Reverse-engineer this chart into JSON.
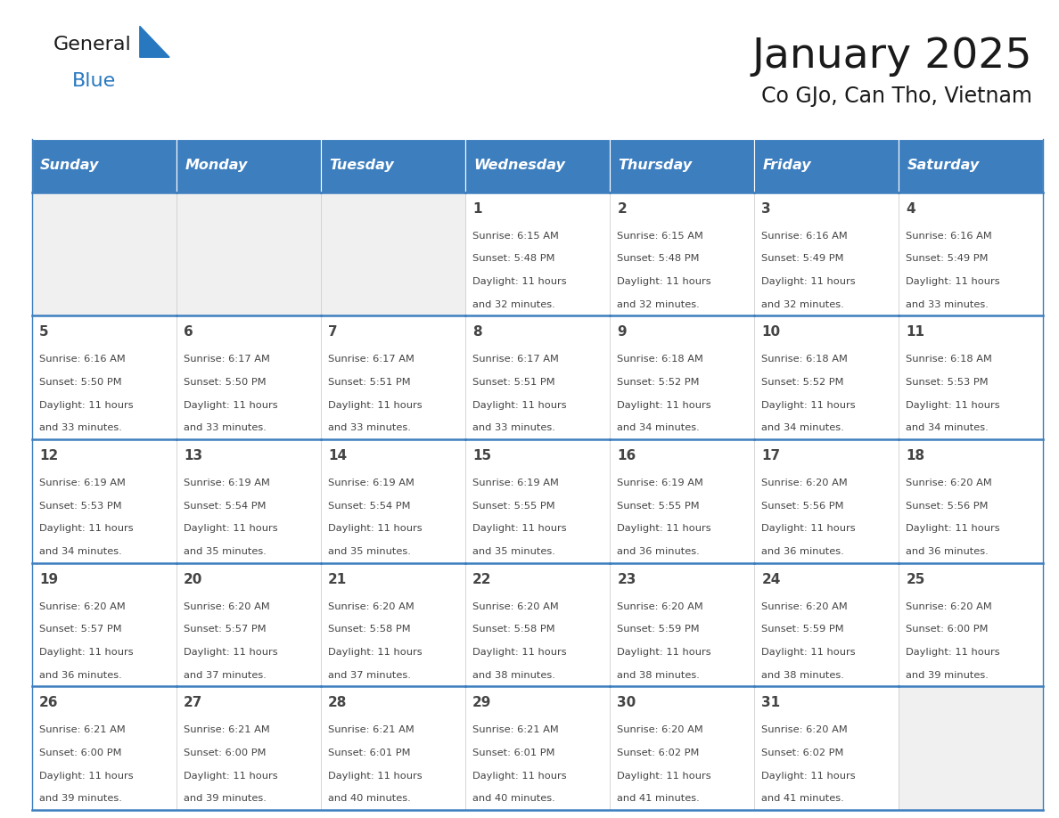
{
  "title": "January 2025",
  "subtitle": "Co GJo, Can Tho, Vietnam",
  "days_of_week": [
    "Sunday",
    "Monday",
    "Tuesday",
    "Wednesday",
    "Thursday",
    "Friday",
    "Saturday"
  ],
  "header_bg": "#3d7ebf",
  "header_text": "#ffffff",
  "cell_bg_light": "#f0f0f0",
  "cell_bg_white": "#ffffff",
  "border_color": "#3d7ebf",
  "text_color": "#444444",
  "title_color": "#1a1a1a",
  "logo_black": "#1a1a1a",
  "logo_blue": "#2878c0",
  "calendar_data": [
    [
      {
        "day": null,
        "sunrise": null,
        "sunset": null,
        "daylight": null
      },
      {
        "day": null,
        "sunrise": null,
        "sunset": null,
        "daylight": null
      },
      {
        "day": null,
        "sunrise": null,
        "sunset": null,
        "daylight": null
      },
      {
        "day": 1,
        "sunrise": "6:15 AM",
        "sunset": "5:48 PM",
        "daylight": "11 hours and 32 minutes."
      },
      {
        "day": 2,
        "sunrise": "6:15 AM",
        "sunset": "5:48 PM",
        "daylight": "11 hours and 32 minutes."
      },
      {
        "day": 3,
        "sunrise": "6:16 AM",
        "sunset": "5:49 PM",
        "daylight": "11 hours and 32 minutes."
      },
      {
        "day": 4,
        "sunrise": "6:16 AM",
        "sunset": "5:49 PM",
        "daylight": "11 hours and 33 minutes."
      }
    ],
    [
      {
        "day": 5,
        "sunrise": "6:16 AM",
        "sunset": "5:50 PM",
        "daylight": "11 hours and 33 minutes."
      },
      {
        "day": 6,
        "sunrise": "6:17 AM",
        "sunset": "5:50 PM",
        "daylight": "11 hours and 33 minutes."
      },
      {
        "day": 7,
        "sunrise": "6:17 AM",
        "sunset": "5:51 PM",
        "daylight": "11 hours and 33 minutes."
      },
      {
        "day": 8,
        "sunrise": "6:17 AM",
        "sunset": "5:51 PM",
        "daylight": "11 hours and 33 minutes."
      },
      {
        "day": 9,
        "sunrise": "6:18 AM",
        "sunset": "5:52 PM",
        "daylight": "11 hours and 34 minutes."
      },
      {
        "day": 10,
        "sunrise": "6:18 AM",
        "sunset": "5:52 PM",
        "daylight": "11 hours and 34 minutes."
      },
      {
        "day": 11,
        "sunrise": "6:18 AM",
        "sunset": "5:53 PM",
        "daylight": "11 hours and 34 minutes."
      }
    ],
    [
      {
        "day": 12,
        "sunrise": "6:19 AM",
        "sunset": "5:53 PM",
        "daylight": "11 hours and 34 minutes."
      },
      {
        "day": 13,
        "sunrise": "6:19 AM",
        "sunset": "5:54 PM",
        "daylight": "11 hours and 35 minutes."
      },
      {
        "day": 14,
        "sunrise": "6:19 AM",
        "sunset": "5:54 PM",
        "daylight": "11 hours and 35 minutes."
      },
      {
        "day": 15,
        "sunrise": "6:19 AM",
        "sunset": "5:55 PM",
        "daylight": "11 hours and 35 minutes."
      },
      {
        "day": 16,
        "sunrise": "6:19 AM",
        "sunset": "5:55 PM",
        "daylight": "11 hours and 36 minutes."
      },
      {
        "day": 17,
        "sunrise": "6:20 AM",
        "sunset": "5:56 PM",
        "daylight": "11 hours and 36 minutes."
      },
      {
        "day": 18,
        "sunrise": "6:20 AM",
        "sunset": "5:56 PM",
        "daylight": "11 hours and 36 minutes."
      }
    ],
    [
      {
        "day": 19,
        "sunrise": "6:20 AM",
        "sunset": "5:57 PM",
        "daylight": "11 hours and 36 minutes."
      },
      {
        "day": 20,
        "sunrise": "6:20 AM",
        "sunset": "5:57 PM",
        "daylight": "11 hours and 37 minutes."
      },
      {
        "day": 21,
        "sunrise": "6:20 AM",
        "sunset": "5:58 PM",
        "daylight": "11 hours and 37 minutes."
      },
      {
        "day": 22,
        "sunrise": "6:20 AM",
        "sunset": "5:58 PM",
        "daylight": "11 hours and 38 minutes."
      },
      {
        "day": 23,
        "sunrise": "6:20 AM",
        "sunset": "5:59 PM",
        "daylight": "11 hours and 38 minutes."
      },
      {
        "day": 24,
        "sunrise": "6:20 AM",
        "sunset": "5:59 PM",
        "daylight": "11 hours and 38 minutes."
      },
      {
        "day": 25,
        "sunrise": "6:20 AM",
        "sunset": "6:00 PM",
        "daylight": "11 hours and 39 minutes."
      }
    ],
    [
      {
        "day": 26,
        "sunrise": "6:21 AM",
        "sunset": "6:00 PM",
        "daylight": "11 hours and 39 minutes."
      },
      {
        "day": 27,
        "sunrise": "6:21 AM",
        "sunset": "6:00 PM",
        "daylight": "11 hours and 39 minutes."
      },
      {
        "day": 28,
        "sunrise": "6:21 AM",
        "sunset": "6:01 PM",
        "daylight": "11 hours and 40 minutes."
      },
      {
        "day": 29,
        "sunrise": "6:21 AM",
        "sunset": "6:01 PM",
        "daylight": "11 hours and 40 minutes."
      },
      {
        "day": 30,
        "sunrise": "6:20 AM",
        "sunset": "6:02 PM",
        "daylight": "11 hours and 41 minutes."
      },
      {
        "day": 31,
        "sunrise": "6:20 AM",
        "sunset": "6:02 PM",
        "daylight": "11 hours and 41 minutes."
      },
      {
        "day": null,
        "sunrise": null,
        "sunset": null,
        "daylight": null
      }
    ]
  ],
  "num_rows": 5,
  "num_cols": 7
}
